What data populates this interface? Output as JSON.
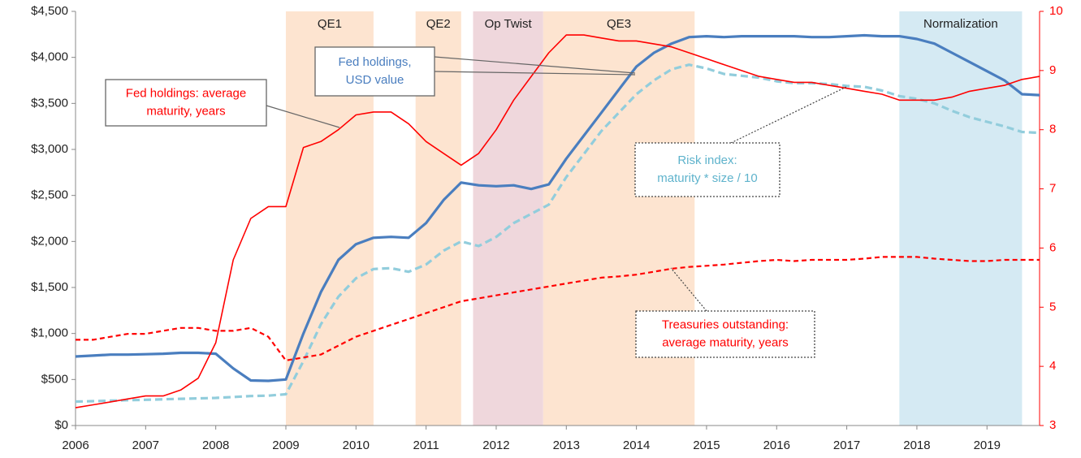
{
  "chart_data": {
    "type": "line",
    "x": [
      2006,
      2006.25,
      2006.5,
      2006.75,
      2007,
      2007.25,
      2007.5,
      2007.75,
      2008,
      2008.25,
      2008.5,
      2008.75,
      2009,
      2009.25,
      2009.5,
      2009.75,
      2010,
      2010.25,
      2010.5,
      2010.75,
      2011,
      2011.25,
      2011.5,
      2011.75,
      2012,
      2012.25,
      2012.5,
      2012.75,
      2013,
      2013.25,
      2013.5,
      2013.75,
      2014,
      2014.25,
      2014.5,
      2014.75,
      2015,
      2015.25,
      2015.5,
      2015.75,
      2016,
      2016.25,
      2016.5,
      2016.75,
      2017,
      2017.25,
      2017.5,
      2017.75,
      2018,
      2018.25,
      2018.5,
      2018.75,
      2019,
      2019.25,
      2019.5,
      2019.75
    ],
    "series": [
      {
        "name": "Fed holdings, USD value",
        "color": "#4a7ebf",
        "dash": false,
        "axis": "y",
        "values": [
          750,
          760,
          770,
          770,
          775,
          780,
          790,
          790,
          780,
          620,
          490,
          485,
          500,
          1000,
          1450,
          1800,
          1970,
          2040,
          2050,
          2040,
          2200,
          2450,
          2640,
          2610,
          2600,
          2610,
          2570,
          2620,
          2900,
          3150,
          3400,
          3650,
          3900,
          4050,
          4150,
          4220,
          4230,
          4220,
          4230,
          4230,
          4230,
          4230,
          4220,
          4220,
          4230,
          4240,
          4230,
          4230,
          4200,
          4150,
          4050,
          3950,
          3850,
          3750,
          3600,
          3590
        ]
      },
      {
        "name": "Risk index: maturity * size / 10",
        "color": "#92cddc",
        "dash": true,
        "axis": "y",
        "values": [
          260,
          265,
          270,
          275,
          280,
          285,
          290,
          295,
          300,
          310,
          320,
          325,
          340,
          700,
          1100,
          1400,
          1600,
          1700,
          1710,
          1670,
          1750,
          1900,
          2000,
          1950,
          2050,
          2200,
          2300,
          2400,
          2700,
          2950,
          3200,
          3400,
          3600,
          3750,
          3870,
          3920,
          3880,
          3820,
          3800,
          3780,
          3740,
          3720,
          3720,
          3710,
          3690,
          3680,
          3640,
          3580,
          3550,
          3500,
          3420,
          3350,
          3300,
          3250,
          3190,
          3180
        ]
      },
      {
        "name": "Fed holdings: average maturity, years",
        "color": "#ff0000",
        "dash": false,
        "axis": "y2",
        "values": [
          3.3,
          3.35,
          3.4,
          3.45,
          3.5,
          3.5,
          3.6,
          3.8,
          4.4,
          5.8,
          6.5,
          6.7,
          6.7,
          7.7,
          7.8,
          8.0,
          8.25,
          8.3,
          8.3,
          8.1,
          7.8,
          7.6,
          7.4,
          7.6,
          8.0,
          8.5,
          8.9,
          9.3,
          9.6,
          9.6,
          9.55,
          9.5,
          9.5,
          9.45,
          9.4,
          9.3,
          9.2,
          9.1,
          9.0,
          8.9,
          8.85,
          8.8,
          8.8,
          8.75,
          8.7,
          8.65,
          8.6,
          8.5,
          8.5,
          8.5,
          8.55,
          8.65,
          8.7,
          8.75,
          8.85,
          8.9
        ]
      },
      {
        "name": "Treasuries outstanding: average maturity, years",
        "color": "#ff0000",
        "dash": true,
        "axis": "y2",
        "values": [
          4.45,
          4.45,
          4.5,
          4.55,
          4.55,
          4.6,
          4.65,
          4.65,
          4.6,
          4.6,
          4.65,
          4.5,
          4.1,
          4.15,
          4.2,
          4.35,
          4.5,
          4.6,
          4.7,
          4.8,
          4.9,
          5.0,
          5.1,
          5.15,
          5.2,
          5.25,
          5.3,
          5.35,
          5.4,
          5.45,
          5.5,
          5.52,
          5.55,
          5.6,
          5.65,
          5.68,
          5.7,
          5.72,
          5.75,
          5.78,
          5.8,
          5.78,
          5.8,
          5.8,
          5.8,
          5.82,
          5.85,
          5.85,
          5.85,
          5.82,
          5.8,
          5.78,
          5.78,
          5.8,
          5.8,
          5.8
        ]
      }
    ],
    "bands": [
      {
        "label": "QE1",
        "start": 2009.0,
        "end": 2010.25,
        "color": "#fde4d0"
      },
      {
        "label": "QE2",
        "start": 2010.85,
        "end": 2011.5,
        "color": "#fde4d0"
      },
      {
        "label": "Op Twist",
        "start": 2011.67,
        "end": 2012.67,
        "color": "#efd7dc"
      },
      {
        "label": "QE3",
        "start": 2012.67,
        "end": 2014.83,
        "color": "#fde4d0"
      },
      {
        "label": "Normalization",
        "start": 2017.75,
        "end": 2019.5,
        "color": "#d5eaf3"
      }
    ],
    "annotations": [
      {
        "lines": [
          "Fed holdings: average",
          "maturity, years"
        ],
        "color": "#ff0000"
      },
      {
        "lines": [
          "Fed holdings,",
          "USD value"
        ],
        "color": "#4a7ebf"
      },
      {
        "lines": [
          "Risk index:",
          "maturity * size / 10"
        ],
        "color": "#5fb3cc"
      },
      {
        "lines": [
          "Treasuries outstanding:",
          "average maturity, years"
        ],
        "color": "#ff0000"
      }
    ],
    "xlim": [
      2006,
      2019.75
    ],
    "xticks": [
      2006,
      2007,
      2008,
      2009,
      2010,
      2011,
      2012,
      2013,
      2014,
      2015,
      2016,
      2017,
      2018,
      2019
    ],
    "ylim": [
      0,
      4500
    ],
    "yticks": [
      {
        "value": 0,
        "label": "$0"
      },
      {
        "value": 500,
        "label": "$500"
      },
      {
        "value": 1000,
        "label": "$1,000"
      },
      {
        "value": 1500,
        "label": "$1,500"
      },
      {
        "value": 2000,
        "label": "$2,000"
      },
      {
        "value": 2500,
        "label": "$2,500"
      },
      {
        "value": 3000,
        "label": "$3,000"
      },
      {
        "value": 3500,
        "label": "$3,500"
      },
      {
        "value": 4000,
        "label": "$4,000"
      },
      {
        "value": 4500,
        "label": "$4,500"
      }
    ],
    "y2lim": [
      3,
      10
    ],
    "y2ticks": [
      3,
      4,
      5,
      6,
      7,
      8,
      9,
      10
    ],
    "y2color": "#ff0000",
    "grid": false
  }
}
